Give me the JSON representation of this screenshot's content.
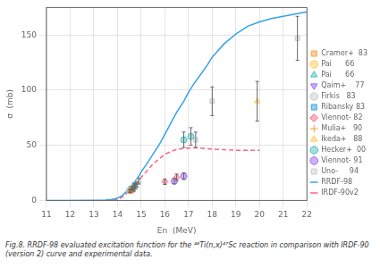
{
  "chart_data": {
    "type": "scatter",
    "caption": "Fig.8.  RRDF-98 evaluated excitation function for the ⁴⁸Ti(n,x)⁴⁷Sc reaction in comparison with IRDF-90 (version 2) curve and experimental data.",
    "xlabel": "En  (MeV)",
    "ylabel": "σ  (mb)",
    "xlim": [
      11,
      22
    ],
    "ylim": [
      0,
      175
    ],
    "xticks": [
      11,
      12,
      13,
      14,
      15,
      16,
      17,
      18,
      19,
      20,
      21,
      22
    ],
    "yticks": [
      0,
      50,
      100,
      150
    ],
    "grid": true,
    "legend": "right",
    "series": [
      {
        "name": "RRDF-98",
        "type": "line",
        "line_style": "solid",
        "x": [
          11.0,
          12.0,
          13.0,
          13.3,
          13.5,
          13.7,
          13.9,
          14.0,
          14.1,
          14.2,
          14.3,
          14.5,
          14.7,
          14.9,
          15.0,
          15.2,
          15.5,
          15.8,
          16.0,
          16.2,
          16.5,
          16.8,
          17.0,
          17.2,
          17.5,
          17.8,
          18.0,
          18.5,
          19.0,
          19.5,
          20.0,
          20.5,
          21.0,
          21.5,
          22.0
        ],
        "values": [
          0.0,
          0.0,
          0.05,
          0.15,
          0.4,
          0.8,
          1.5,
          2.2,
          3.2,
          4.5,
          6.5,
          10.5,
          16.0,
          22.0,
          26.0,
          32.0,
          42.0,
          52.0,
          60.0,
          68.0,
          80.0,
          90.0,
          98.0,
          105.0,
          114.0,
          123.0,
          130.0,
          142.0,
          151.0,
          158.0,
          162.0,
          165.0,
          167.0,
          169.0,
          171.0
        ]
      },
      {
        "name": "IRDF-90v2",
        "type": "line",
        "line_style": "dashed",
        "x": [
          13.5,
          13.7,
          13.9,
          14.0,
          14.1,
          14.2,
          14.3,
          14.5,
          14.7,
          15.0,
          15.5,
          16.0,
          16.5,
          17.0,
          17.3,
          17.5,
          18.0,
          18.5,
          19.0,
          19.5,
          20.0
        ],
        "values": [
          0.1,
          0.3,
          0.7,
          1.0,
          1.8,
          3.0,
          5.0,
          8.5,
          13.0,
          21.0,
          33.0,
          42.0,
          46.5,
          47.5,
          47.8,
          47.5,
          46.5,
          46.0,
          45.5,
          45.5,
          45.5
        ]
      },
      {
        "name": "Cramer+  83",
        "type": "scatter",
        "marker": "square",
        "x": [
          14.55
        ],
        "values": [
          8.5
        ],
        "errors": [
          1.5
        ]
      },
      {
        "name": "Pai      66",
        "type": "scatter",
        "marker": "circle",
        "x": [
          14.65
        ],
        "values": [
          11.0
        ],
        "errors": [
          1.5
        ]
      },
      {
        "name": "Pai      66",
        "type": "scatter",
        "marker": "triangle-up",
        "x": [
          14.75
        ],
        "values": [
          12.5
        ],
        "errors": [
          2.0
        ]
      },
      {
        "name": "Qaim+    77",
        "type": "scatter",
        "marker": "triangle-down",
        "x": [
          14.7
        ],
        "values": [
          10.0
        ],
        "errors": [
          1.5
        ]
      },
      {
        "name": "Firkis   83",
        "type": "scatter",
        "marker": "circle",
        "x": [
          14.5,
          14.68
        ],
        "values": [
          9.0,
          12.5
        ],
        "errors": [
          1.5,
          1.5
        ]
      },
      {
        "name": "Ribansky 83",
        "type": "scatter",
        "marker": "square",
        "x": [
          14.58,
          14.72
        ],
        "values": [
          11.0,
          14.0
        ],
        "errors": [
          1.5,
          1.5
        ]
      },
      {
        "name": "Viennot- 82",
        "type": "scatter",
        "marker": "diamond",
        "x": [
          16.0,
          16.5
        ],
        "values": [
          17.0,
          21.0
        ],
        "errors": [
          2.5,
          3.0
        ]
      },
      {
        "name": "Mulia+   90",
        "type": "scatter",
        "marker": "plus",
        "x": [
          14.62,
          14.82
        ],
        "values": [
          10.5,
          14.5
        ],
        "errors": [
          2.0,
          2.0
        ]
      },
      {
        "name": "Ikeda+   88",
        "type": "scatter",
        "marker": "triangle-up",
        "x": [
          19.9
        ],
        "values": [
          90.0
        ],
        "errors": [
          18.0
        ]
      },
      {
        "name": "Hecker+  00",
        "type": "scatter",
        "marker": "circle",
        "x": [
          16.8,
          17.1
        ],
        "values": [
          55.0,
          58.0
        ],
        "errors": [
          7.0,
          8.0
        ]
      },
      {
        "name": "Viennot- 91",
        "type": "scatter",
        "marker": "circle",
        "x": [
          16.4,
          16.8
        ],
        "values": [
          17.5,
          22.0
        ],
        "errors": [
          2.5,
          3.0
        ]
      },
      {
        "name": "Uno-     94",
        "type": "scatter",
        "marker": "square",
        "x": [
          14.9,
          17.3,
          18.0,
          21.6
        ],
        "values": [
          17.5,
          55.0,
          90.0,
          147.0
        ],
        "errors": [
          2.5,
          7.0,
          13.0,
          20.0
        ]
      }
    ]
  }
}
